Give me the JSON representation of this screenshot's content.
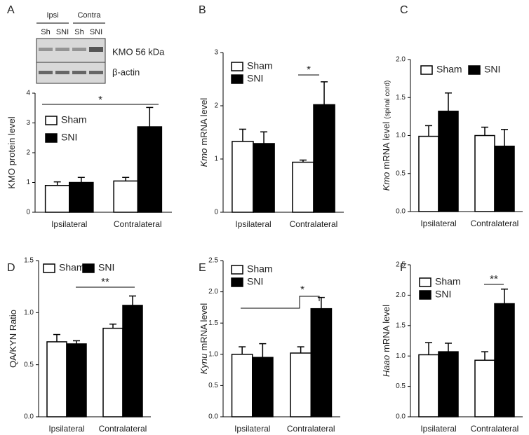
{
  "chart_data": [
    {
      "type": "bar",
      "panel": "A",
      "ylabel": "KMO protein level",
      "categories": [
        "Ipsilateral",
        "Contralateral"
      ],
      "series": [
        {
          "name": "Sham",
          "color": "#ffffff",
          "values": [
            0.9,
            1.05
          ],
          "errors": [
            0.12,
            0.12
          ]
        },
        {
          "name": "SNI",
          "color": "#000000",
          "values": [
            1.0,
            2.87
          ],
          "errors": [
            0.17,
            0.65
          ]
        }
      ],
      "ylim": [
        0,
        4
      ],
      "yticks": [
        0,
        1,
        2,
        3,
        4
      ],
      "legend": "vertical",
      "annotation": "*",
      "blot": {
        "groups": [
          "Ipsi",
          "Contra"
        ],
        "lanes": [
          "Sh",
          "SNI",
          "Sh",
          "SNI"
        ],
        "rows": [
          "KMO 56 kDa",
          "β-actin"
        ]
      }
    },
    {
      "type": "bar",
      "panel": "B",
      "ylabel_gene": "Kmo",
      "ylabel": "mRNA level",
      "categories": [
        "Ipsilateral",
        "Contralateral"
      ],
      "series": [
        {
          "name": "Sham",
          "color": "#ffffff",
          "values": [
            1.33,
            0.94
          ],
          "errors": [
            0.23,
            0.04
          ]
        },
        {
          "name": "SNI",
          "color": "#000000",
          "values": [
            1.29,
            2.02
          ],
          "errors": [
            0.22,
            0.43
          ]
        }
      ],
      "ylim": [
        0,
        3
      ],
      "yticks": [
        0,
        1,
        2,
        3
      ],
      "legend": "vertical",
      "annotation": "*"
    },
    {
      "type": "bar",
      "panel": "C",
      "ylabel_gene": "Kmo",
      "ylabel": "mRNA level",
      "ylabel_note": "(spinal cord)",
      "categories": [
        "Ipsilateral",
        "Contralateral"
      ],
      "series": [
        {
          "name": "Sham",
          "color": "#ffffff",
          "values": [
            0.99,
            1.0
          ],
          "errors": [
            0.14,
            0.11
          ]
        },
        {
          "name": "SNI",
          "color": "#000000",
          "values": [
            1.32,
            0.86
          ],
          "errors": [
            0.24,
            0.22
          ]
        }
      ],
      "ylim": [
        0,
        2
      ],
      "yticks": [
        {
          "value": 0,
          "label": "0.0"
        },
        {
          "value": 0.5,
          "label": "0.5"
        },
        {
          "value": 1,
          "label": "1.0"
        },
        {
          "value": 1.5,
          "label": "1.5"
        },
        {
          "value": 2,
          "label": "2.0"
        }
      ],
      "legend": "horizontal"
    },
    {
      "type": "bar",
      "panel": "D",
      "ylabel": "QA/KYN Ratio",
      "categories": [
        "Ipsilateral",
        "Contralateral"
      ],
      "series": [
        {
          "name": "Sham",
          "color": "#ffffff",
          "values": [
            0.72,
            0.85
          ],
          "errors": [
            0.07,
            0.04
          ]
        },
        {
          "name": "SNI",
          "color": "#000000",
          "values": [
            0.7,
            1.07
          ],
          "errors": [
            0.03,
            0.09
          ]
        }
      ],
      "ylim": [
        0,
        1.5
      ],
      "yticks": [
        {
          "value": 0,
          "label": "0.0"
        },
        {
          "value": 0.5,
          "label": "0.5"
        },
        {
          "value": 1,
          "label": "1.0"
        },
        {
          "value": 1.5,
          "label": "1.5"
        }
      ],
      "legend": "horizontal",
      "annotation": "**"
    },
    {
      "type": "bar",
      "panel": "E",
      "ylabel_gene": "Kynu",
      "ylabel": "mRNA level",
      "categories": [
        "Ipsilateral",
        "Contralateral"
      ],
      "series": [
        {
          "name": "Sham",
          "color": "#ffffff",
          "values": [
            1.0,
            1.02
          ],
          "errors": [
            0.12,
            0.1
          ]
        },
        {
          "name": "SNI",
          "color": "#000000",
          "values": [
            0.95,
            1.73
          ],
          "errors": [
            0.22,
            0.18
          ]
        }
      ],
      "ylim": [
        0,
        2.5
      ],
      "yticks": [
        {
          "value": 0,
          "label": "0.0"
        },
        {
          "value": 0.5,
          "label": "0.5"
        },
        {
          "value": 1,
          "label": "1.0"
        },
        {
          "value": 1.5,
          "label": "1.5"
        },
        {
          "value": 2,
          "label": "2.0"
        },
        {
          "value": 2.5,
          "label": "2.5"
        }
      ],
      "legend": "vertical",
      "annotation": "*"
    },
    {
      "type": "bar",
      "panel": "F",
      "ylabel_gene": "Haao",
      "ylabel": "mRNA level",
      "categories": [
        "Ipsilateral",
        "Contralateral"
      ],
      "series": [
        {
          "name": "Sham",
          "color": "#ffffff",
          "values": [
            1.02,
            0.93
          ],
          "errors": [
            0.2,
            0.14
          ]
        },
        {
          "name": "SNI",
          "color": "#000000",
          "values": [
            1.07,
            1.86
          ],
          "errors": [
            0.14,
            0.24
          ]
        }
      ],
      "ylim": [
        0,
        2.5
      ],
      "yticks": [
        {
          "value": 0,
          "label": "0.0"
        },
        {
          "value": 0.5,
          "label": "0.5"
        },
        {
          "value": 1,
          "label": "1.0"
        },
        {
          "value": 1.5,
          "label": "1.5"
        },
        {
          "value": 2,
          "label": "2.0"
        },
        {
          "value": 2.5,
          "label": "2.5"
        }
      ],
      "legend": "vertical",
      "annotation": "**"
    }
  ]
}
